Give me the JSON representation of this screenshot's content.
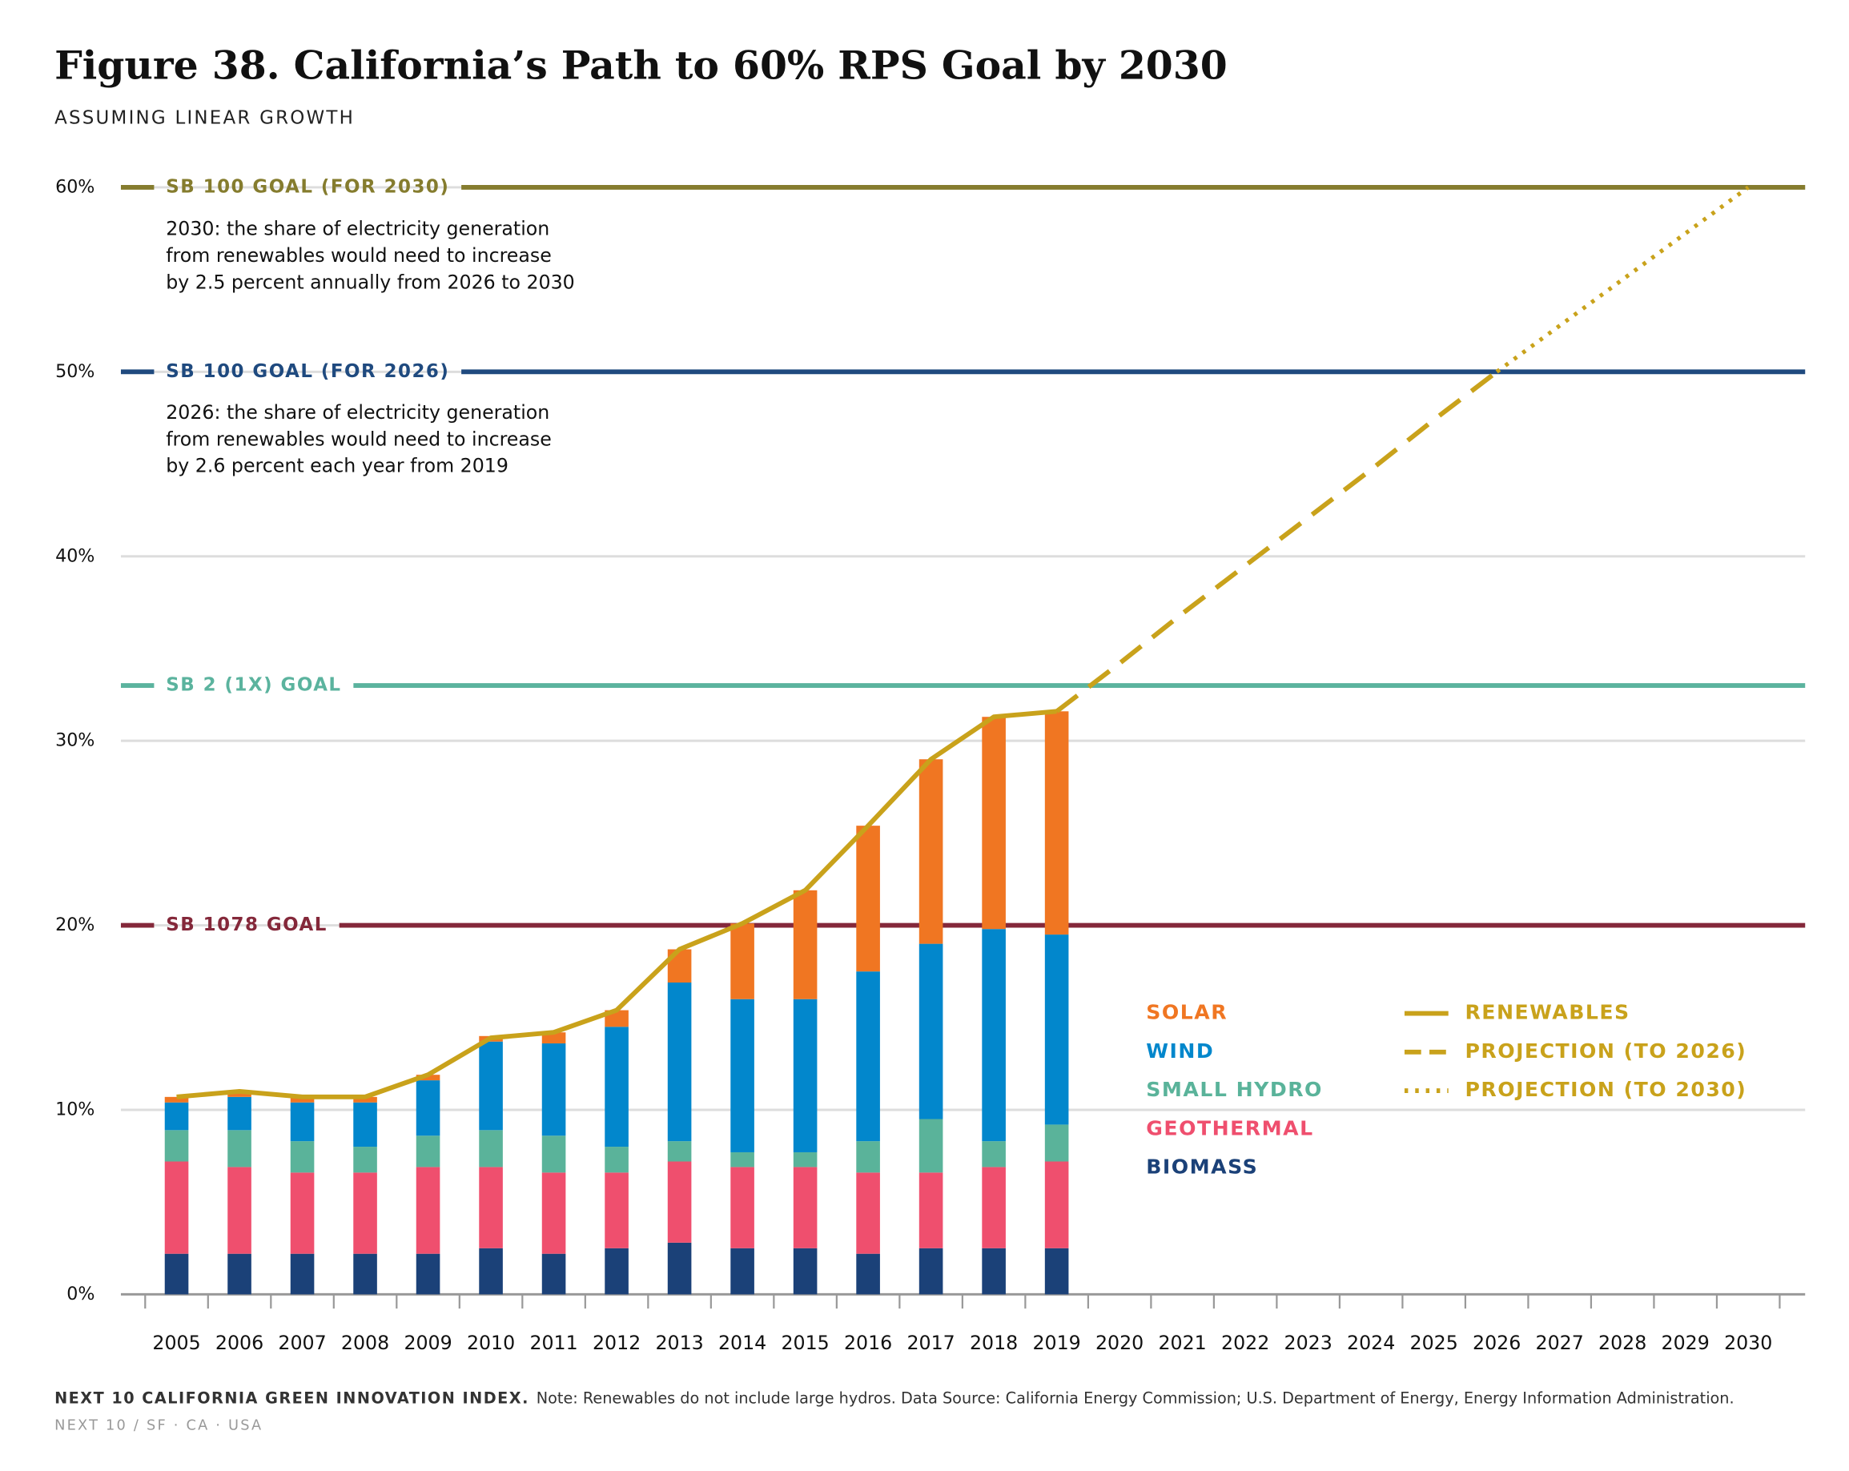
{
  "chart_data": {
    "type": "bar",
    "stacked": true,
    "title": "Figure 38. California’s Path to 60% RPS Goal by 2030",
    "subtitle": "ASSUMING LINEAR GROWTH",
    "categories": [
      "2005",
      "2006",
      "2007",
      "2008",
      "2009",
      "2010",
      "2011",
      "2012",
      "2013",
      "2014",
      "2015",
      "2016",
      "2017",
      "2018",
      "2019",
      "2020",
      "2021",
      "2022",
      "2023",
      "2024",
      "2025",
      "2026",
      "2027",
      "2028",
      "2029",
      "2030"
    ],
    "ylim": [
      0,
      60
    ],
    "yticks": [
      {
        "value": 0,
        "label": "0%"
      },
      {
        "value": 10,
        "label": "10%"
      },
      {
        "value": 20,
        "label": "20%"
      },
      {
        "value": 30,
        "label": "30%"
      },
      {
        "value": 40,
        "label": "40%"
      },
      {
        "value": 50,
        "label": "50%"
      },
      {
        "value": 60,
        "label": "60%"
      }
    ],
    "grid": true,
    "series": [
      {
        "name": "BIOMASS",
        "color": "#1b4178",
        "values": [
          2.2,
          2.2,
          2.2,
          2.2,
          2.2,
          2.5,
          2.2,
          2.5,
          2.8,
          2.5,
          2.5,
          2.2,
          2.5,
          2.5,
          2.5,
          null,
          null,
          null,
          null,
          null,
          null,
          null,
          null,
          null,
          null,
          null
        ]
      },
      {
        "name": "GEOTHERMAL",
        "color": "#ef4f6e",
        "values": [
          5.0,
          4.7,
          4.4,
          4.4,
          4.7,
          4.4,
          4.4,
          4.1,
          4.4,
          4.4,
          4.4,
          4.4,
          4.1,
          4.4,
          4.7,
          null,
          null,
          null,
          null,
          null,
          null,
          null,
          null,
          null,
          null,
          null
        ]
      },
      {
        "name": "SMALL HYDRO",
        "color": "#5ab39a",
        "values": [
          1.7,
          2.0,
          1.7,
          1.4,
          1.7,
          2.0,
          2.0,
          1.4,
          1.1,
          0.8,
          0.8,
          1.7,
          2.9,
          1.4,
          2.0,
          null,
          null,
          null,
          null,
          null,
          null,
          null,
          null,
          null,
          null,
          null
        ]
      },
      {
        "name": "WIND",
        "color": "#0287cc",
        "values": [
          1.5,
          1.8,
          2.1,
          2.4,
          3.0,
          4.8,
          5.0,
          6.5,
          8.6,
          8.3,
          8.3,
          9.2,
          9.5,
          11.5,
          10.3,
          null,
          null,
          null,
          null,
          null,
          null,
          null,
          null,
          null,
          null,
          null
        ]
      },
      {
        "name": "SOLAR",
        "color": "#f07622",
        "values": [
          0.3,
          0.2,
          0.3,
          0.3,
          0.3,
          0.3,
          0.6,
          0.9,
          1.8,
          4.1,
          5.9,
          7.9,
          10.0,
          11.5,
          12.1,
          null,
          null,
          null,
          null,
          null,
          null,
          null,
          null,
          null,
          null,
          null
        ]
      },
      {
        "name": "RENEWABLES",
        "type": "line",
        "dash": "solid",
        "color": "#c9a21b",
        "values": [
          10.7,
          11.0,
          10.7,
          10.7,
          11.9,
          13.9,
          14.2,
          15.4,
          18.7,
          20.1,
          21.9,
          25.4,
          29.0,
          31.3,
          31.6,
          null,
          null,
          null,
          null,
          null,
          null,
          null,
          null,
          null,
          null,
          null
        ]
      },
      {
        "name": "PROJECTION (TO 2026)",
        "type": "line",
        "dash": "dashed",
        "color": "#c9a21b",
        "values": [
          null,
          null,
          null,
          null,
          null,
          null,
          null,
          null,
          null,
          null,
          null,
          null,
          null,
          null,
          31.6,
          34.2,
          36.9,
          39.5,
          42.1,
          44.7,
          47.4,
          50,
          null,
          null,
          null,
          null
        ]
      },
      {
        "name": "PROJECTION (TO 2030)",
        "type": "line",
        "dash": "dotted",
        "color": "#c9a21b",
        "values": [
          null,
          null,
          null,
          null,
          null,
          null,
          null,
          null,
          null,
          null,
          null,
          null,
          null,
          null,
          null,
          null,
          null,
          null,
          null,
          null,
          null,
          50,
          52.5,
          55,
          57.5,
          60
        ]
      }
    ],
    "goals": [
      {
        "name": "SB 100 GOAL (FOR 2030)",
        "value": 60,
        "color": "#857c2e"
      },
      {
        "name": "SB 100 GOAL (FOR 2026)",
        "value": 50,
        "color": "#1f4a7f"
      },
      {
        "name": "SB 2 (1X) GOAL",
        "value": 33,
        "color": "#5bb39e"
      },
      {
        "name": "SB 1078 GOAL",
        "value": 20,
        "color": "#84283a"
      }
    ],
    "annotations": [
      [
        "2030: the share of electricity generation",
        "from renewables would need to increase",
        "by 2.5 percent annually from 2026 to 2030"
      ],
      [
        "2026: the share of electricity generation",
        "from renewables would need to increase",
        "by 2.6 percent each year from 2019"
      ]
    ],
    "footer": {
      "source_title": "NEXT 10 CALIFORNIA GREEN INNOVATION INDEX.",
      "note": "Note: Renewables do not include large hydros. Data Source: California Energy Commission; U.S. Department of Energy, Energy Information Administration.",
      "publisher": "NEXT 10 / SF · CA · USA"
    }
  }
}
